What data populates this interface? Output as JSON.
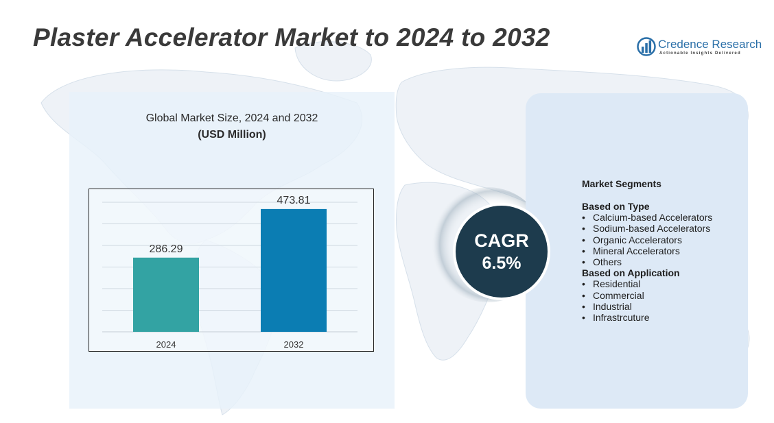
{
  "header": {
    "title": "Plaster Accelerator Market to 2024 to 2032"
  },
  "logo": {
    "name": "Credence Research",
    "tagline": "Actionable Insights Delivered",
    "icon": "bar-chart-globe-icon",
    "color": "#2a6fa8"
  },
  "chart_data": {
    "type": "bar",
    "title": "Global Market Size, 2024 and 2032",
    "subtitle": "(USD Million)",
    "categories": [
      "2024",
      "2032"
    ],
    "values": [
      286.29,
      473.81
    ],
    "value_labels": [
      "286.29",
      "473.81"
    ],
    "colors": [
      "#33a3a3",
      "#0b7db3"
    ],
    "ylim": [
      0,
      500
    ],
    "grid": true,
    "legend": "none",
    "xlabel": "",
    "ylabel": ""
  },
  "cagr": {
    "label": "CAGR",
    "value": "6.5%"
  },
  "segments": {
    "heading": "Market Segments",
    "groups": [
      {
        "title": "Based on Type",
        "items": [
          "Calcium-based Accelerators",
          "Sodium-based Accelerators",
          "Organic Accelerators",
          "Mineral Accelerators",
          "Others"
        ]
      },
      {
        "title": "Based on Application",
        "items": [
          "Residential",
          "Commercial",
          "Industrial",
          "Infrastrcuture"
        ]
      }
    ]
  },
  "colors": {
    "title_text": "#3a3a3a",
    "chart_panel": "#e8f1fa",
    "segment_panel": "#dde9f6",
    "cagr_badge": "#1d3b4d"
  }
}
